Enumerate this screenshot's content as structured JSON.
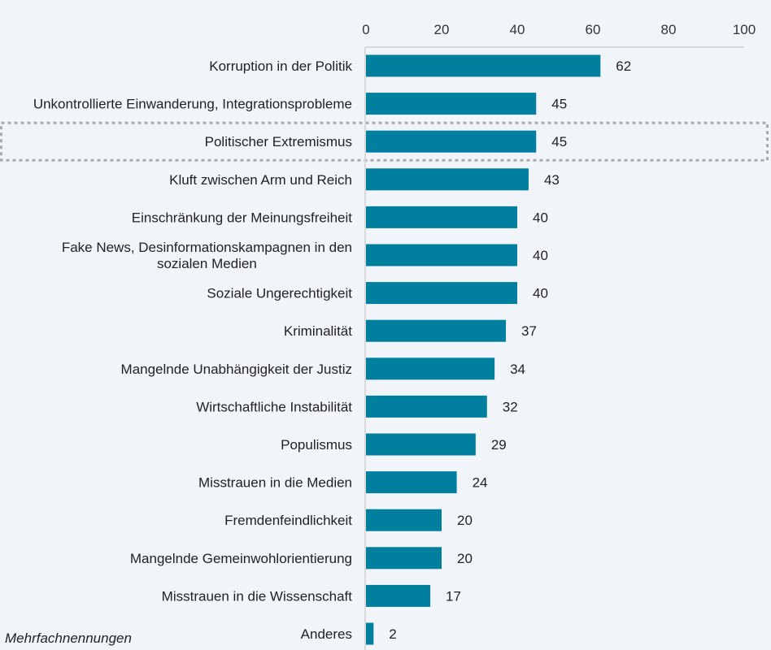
{
  "chart_data": {
    "type": "bar",
    "orientation": "horizontal",
    "title": "",
    "xlabel": "",
    "ylabel": "",
    "xlim": [
      0,
      100
    ],
    "xticks": [
      0,
      20,
      40,
      60,
      80,
      100
    ],
    "tick_position": "top",
    "grid": false,
    "bar_color": "#007f9f",
    "highlighted_category": "Politischer Extremismus",
    "categories": [
      "Korruption in der Politik",
      "Unkontrollierte Einwanderung, Integrationsprobleme",
      "Politischer Extremismus",
      "Kluft zwischen Arm und Reich",
      "Einschränkung der Meinungsfreiheit",
      "Fake News, Desinformationskampagnen in den|sozialen Medien",
      "Soziale Ungerechtigkeit",
      "Kriminalität",
      "Mangelnde Unabhängigkeit der Justiz",
      "Wirtschaftliche Instabilität",
      "Populismus",
      "Misstrauen in die Medien",
      "Fremdenfeindlichkeit",
      "Mangelnde Gemeinwohlorientierung",
      "Misstrauen in die Wissenschaft",
      "Anderes"
    ],
    "values": [
      62,
      45,
      45,
      43,
      40,
      40,
      40,
      37,
      34,
      32,
      29,
      24,
      20,
      20,
      17,
      2
    ]
  },
  "footnote": "Mehrfachnennungen"
}
